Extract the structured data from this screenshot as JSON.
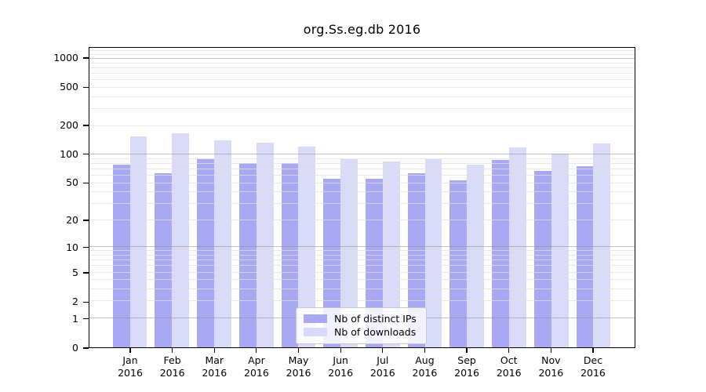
{
  "chart_data": {
    "type": "bar",
    "title": "org.Ss.eg.db 2016",
    "categories": [
      "Jan",
      "Feb",
      "Mar",
      "Apr",
      "May",
      "Jun",
      "Jul",
      "Aug",
      "Sep",
      "Oct",
      "Nov",
      "Dec"
    ],
    "year_label": "2016",
    "series": [
      {
        "name": "Nb of distinct IPs",
        "color": "#a9a9f3",
        "values": [
          78,
          64,
          90,
          82,
          82,
          56,
          56,
          63,
          54,
          88,
          67,
          75
        ]
      },
      {
        "name": "Nb of downloads",
        "color": "#d9d9f8",
        "values": [
          155,
          167,
          141,
          133,
          121,
          89,
          84,
          90,
          78,
          120,
          102,
          132
        ]
      }
    ],
    "yscale": "log10(1+v)",
    "ylim": [
      0,
      1300
    ],
    "yticks": [
      0,
      1,
      2,
      5,
      10,
      20,
      50,
      100,
      200,
      500,
      1000
    ],
    "major_gridlines": [
      1,
      10,
      100,
      1000
    ],
    "minor_gridlines": [
      2,
      3,
      4,
      5,
      6,
      7,
      8,
      9,
      20,
      30,
      40,
      50,
      60,
      70,
      80,
      90,
      200,
      300,
      400,
      500,
      600,
      700,
      800,
      900,
      1100,
      1200
    ],
    "grid": true,
    "legend_position": "lower center",
    "colors": {
      "axis": "#000000",
      "major_grid": "rgba(140,140,140,0.55)",
      "minor_grid": "rgba(224,224,224,0.75)",
      "legend_border": "#c8c8c8",
      "background": "#ffffff"
    }
  }
}
